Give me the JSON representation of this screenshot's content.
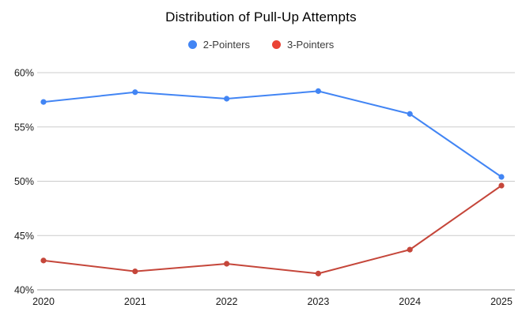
{
  "chart_data": {
    "type": "line",
    "title": "Distribution of Pull-Up Attempts",
    "categories": [
      "2020",
      "2021",
      "2022",
      "2023",
      "2024",
      "2025"
    ],
    "series": [
      {
        "name": "2-Pointers",
        "color": "#4285f4",
        "line_color": "#4285f4",
        "values": [
          57.3,
          58.2,
          57.6,
          58.3,
          56.2,
          50.4
        ]
      },
      {
        "name": "3-Pointers",
        "color": "#ea4335",
        "line_color": "#c5463a",
        "values": [
          42.7,
          41.7,
          42.4,
          41.5,
          43.7,
          49.6
        ]
      }
    ],
    "xlabel": "",
    "ylabel": "",
    "ylim": [
      40,
      60
    ],
    "yticks": [
      {
        "value": 40,
        "label": "40%"
      },
      {
        "value": 45,
        "label": "45%"
      },
      {
        "value": 50,
        "label": "50%"
      },
      {
        "value": 55,
        "label": "55%"
      },
      {
        "value": 60,
        "label": "60%"
      }
    ],
    "grid": true,
    "legend_position": "top",
    "colors": {
      "background": "#ffffff",
      "gridline": "#cccccc",
      "baseline": "#9e9e9e",
      "axis_text": "#1a1a1a",
      "title_text": "#000000"
    }
  }
}
